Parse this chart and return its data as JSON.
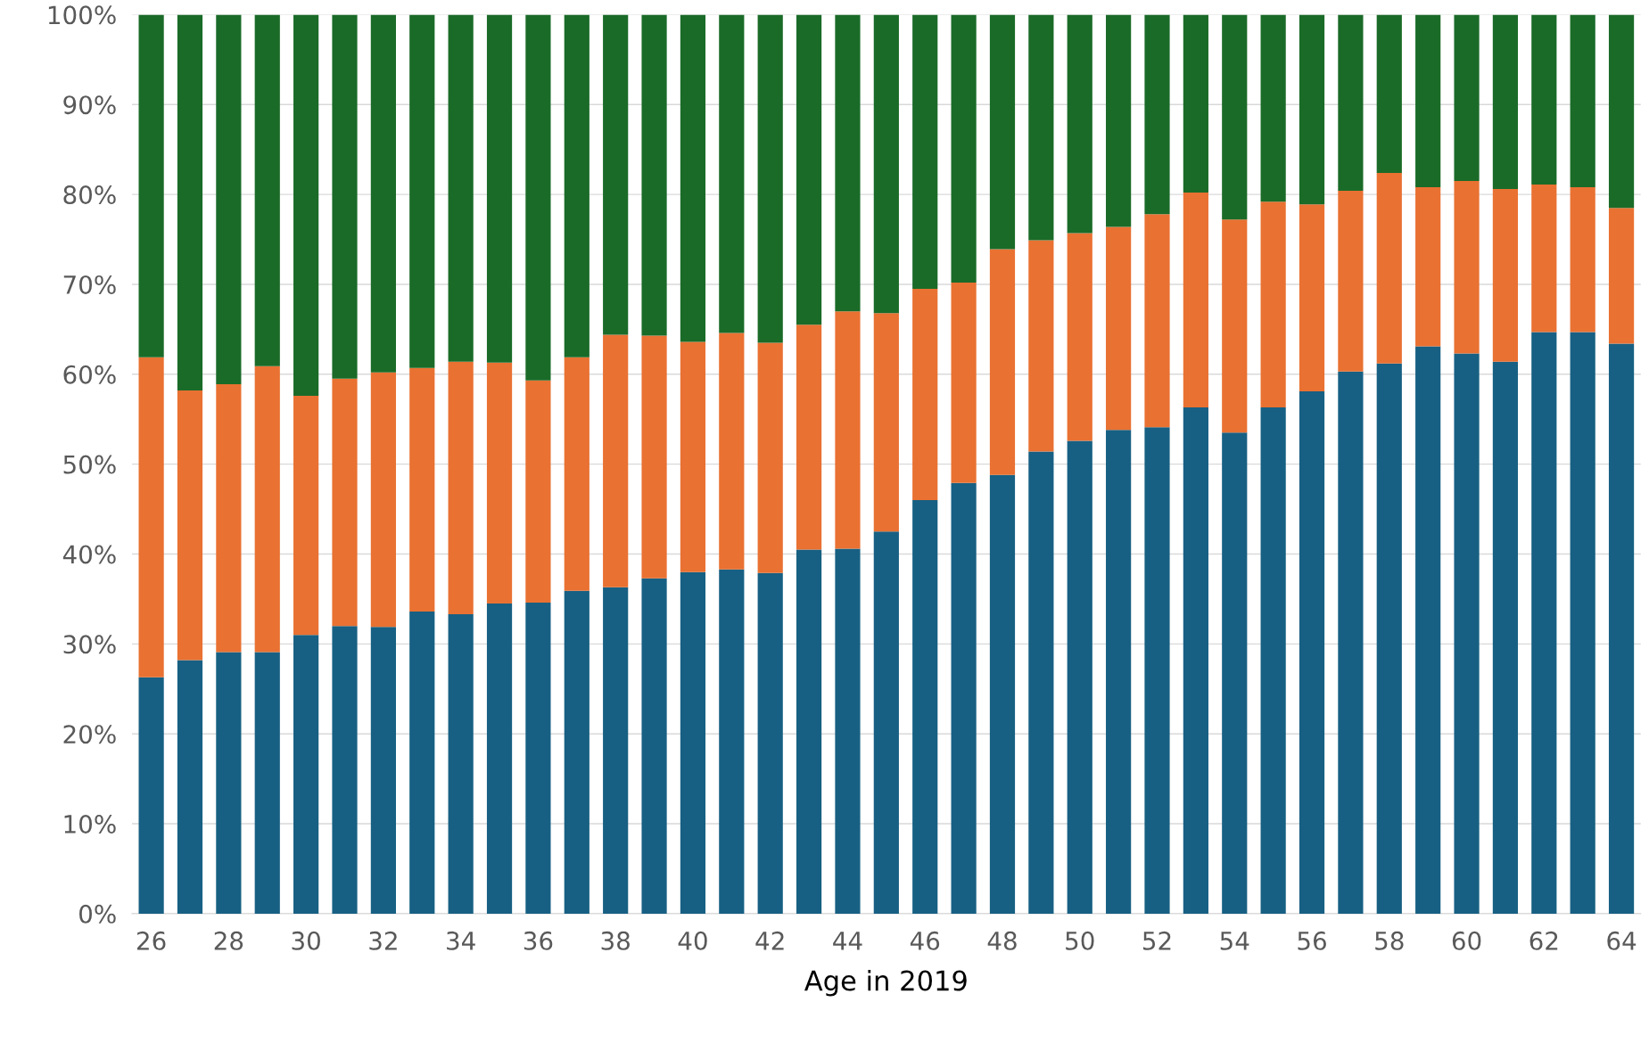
{
  "chart_data": {
    "type": "bar",
    "stacked": true,
    "xlabel": "Age in 2019",
    "categories": [
      "26",
      null,
      "28",
      null,
      "30",
      null,
      "32",
      null,
      "34",
      null,
      "36",
      null,
      "38",
      null,
      "40",
      null,
      "42",
      null,
      "44",
      null,
      "46",
      null,
      "48",
      null,
      "50",
      null,
      "52",
      null,
      "54",
      null,
      "56",
      null,
      "58",
      null,
      "60",
      null,
      "62",
      null,
      "64"
    ],
    "series": [
      {
        "color": "#176083",
        "values": [
          26.3,
          28.2,
          29.1,
          29.1,
          31.0,
          32.0,
          31.9,
          33.6,
          33.3,
          34.5,
          34.6,
          35.9,
          36.3,
          37.3,
          38.0,
          38.3,
          37.9,
          40.5,
          40.6,
          42.5,
          46.0,
          47.9,
          48.8,
          51.4,
          52.6,
          53.8,
          54.1,
          56.3,
          53.5,
          56.3,
          58.1,
          60.3,
          61.2,
          63.1,
          62.3,
          61.4,
          64.7,
          64.7,
          63.4
        ]
      },
      {
        "color": "#e97132",
        "values": [
          35.6,
          30.0,
          29.8,
          31.8,
          26.6,
          27.5,
          28.3,
          27.1,
          28.1,
          26.8,
          24.7,
          26.0,
          28.1,
          27.0,
          25.6,
          26.3,
          25.6,
          25.0,
          26.4,
          24.3,
          23.5,
          22.3,
          25.1,
          23.5,
          23.1,
          22.6,
          23.7,
          23.9,
          23.7,
          22.9,
          20.8,
          20.1,
          21.2,
          17.7,
          19.2,
          19.2,
          16.4,
          16.1,
          15.1
        ]
      },
      {
        "color": "#1a6b28",
        "values": [
          38.1,
          41.8,
          41.1,
          39.1,
          42.4,
          40.5,
          39.8,
          39.3,
          38.6,
          38.7,
          40.7,
          38.1,
          35.6,
          35.7,
          36.4,
          35.4,
          36.5,
          34.5,
          33.0,
          33.2,
          30.5,
          29.8,
          26.1,
          25.1,
          24.3,
          23.6,
          22.2,
          19.8,
          22.8,
          20.8,
          21.1,
          19.6,
          17.6,
          19.2,
          18.5,
          19.4,
          18.9,
          19.2,
          21.5
        ]
      }
    ],
    "ylim": [
      0,
      100
    ],
    "yticks": [
      {
        "value": 0,
        "label": "0%"
      },
      {
        "value": 10,
        "label": "10%"
      },
      {
        "value": 20,
        "label": "20%"
      },
      {
        "value": 30,
        "label": "30%"
      },
      {
        "value": 40,
        "label": "40%"
      },
      {
        "value": 50,
        "label": "50%"
      },
      {
        "value": 60,
        "label": "60%"
      },
      {
        "value": 70,
        "label": "70%"
      },
      {
        "value": 80,
        "label": "80%"
      },
      {
        "value": 90,
        "label": "90%"
      },
      {
        "value": 100,
        "label": "100%"
      }
    ],
    "grid": "y"
  }
}
